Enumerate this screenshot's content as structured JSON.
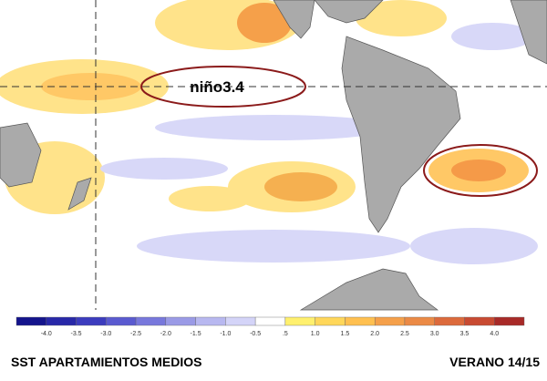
{
  "map": {
    "annotation": "niño3.4"
  },
  "colorbar": {
    "labels": [
      "-4.0",
      "-3.5",
      "-3.0",
      "-2.5",
      "-2.0",
      "-1.5",
      "-1.0",
      "-0.5",
      ".5",
      "1.0",
      "1.5",
      "2.0",
      "2.5",
      "3.0",
      "3.5",
      "4.0"
    ],
    "colors": [
      "#14148c",
      "#2828a8",
      "#3c3cbe",
      "#5a5ad0",
      "#7878dc",
      "#9a9ae6",
      "#b8b8f0",
      "#d4d4f8",
      "#ffffff",
      "#fff06e",
      "#ffd75a",
      "#ffc050",
      "#f5a04a",
      "#eb8a46",
      "#dc6a3c",
      "#c84a32",
      "#a82a28"
    ]
  },
  "footer": {
    "left": "SST APARTAMIENTOS MEDIOS",
    "right": "VERANO 14/15"
  }
}
